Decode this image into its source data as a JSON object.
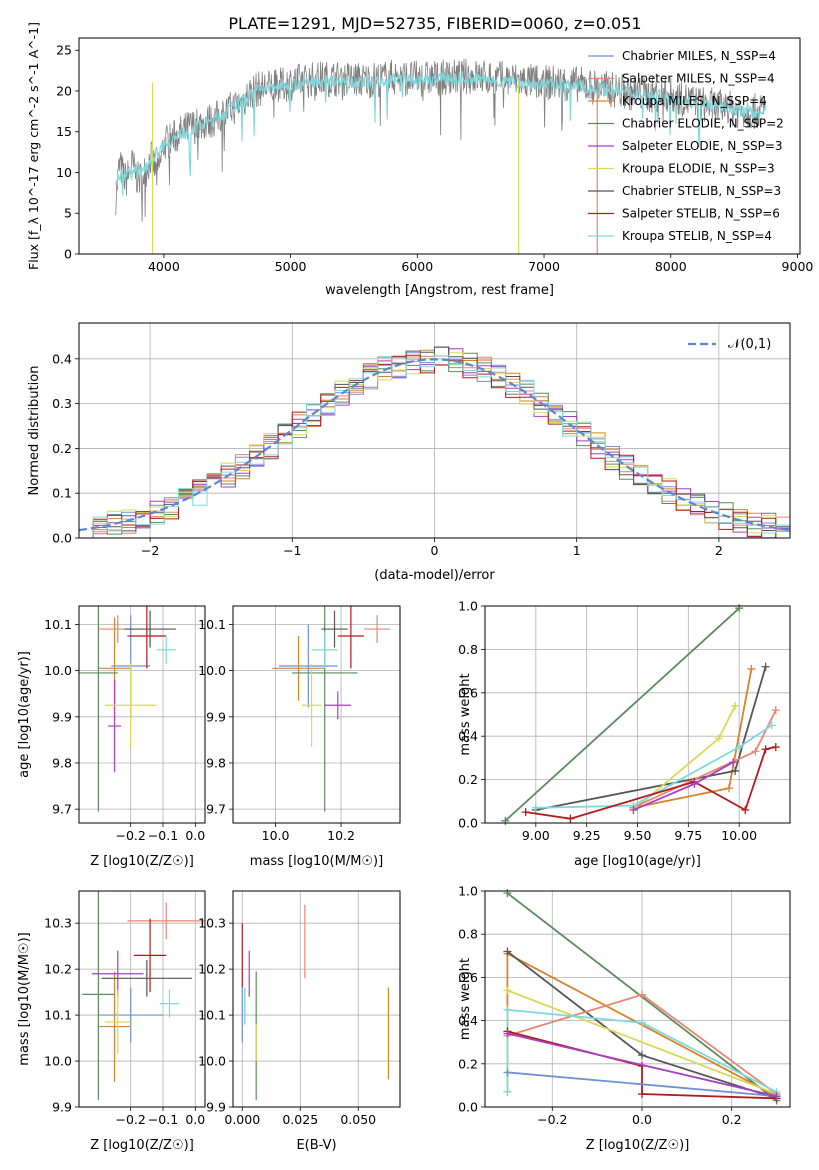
{
  "figure": {
    "title": "PLATE=1291, MJD=52735, FIBERID=0060, z=0.051"
  },
  "series_colors": {
    "Chabrier MILES": "#6f8fd6",
    "Salpeter MILES": "#e8866f",
    "Kroupa MILES": "#d9822b",
    "Chabrier ELODIE": "#5b8a5b",
    "Salpeter ELODIE": "#a63fc6",
    "Kroupa ELODIE": "#d8d955",
    "Chabrier STELIB": "#555555",
    "Salpeter STELIB": "#b31b1b",
    "Kroupa STELIB": "#7fd8dc"
  },
  "chart_data": [
    {
      "id": "spectrum",
      "type": "line",
      "title": "PLATE=1291, MJD=52735, FIBERID=0060, z=0.051",
      "xlabel": "wavelength [Angstrom, rest frame]",
      "ylabel": "Flux [f_λ 10^-17 erg cm^-2 s^-1 A^-1]",
      "xlim": [
        3330,
        9020
      ],
      "ylim": [
        0,
        26.5
      ],
      "xticks": [
        4000,
        5000,
        6000,
        7000,
        8000,
        9000
      ],
      "yticks": [
        0,
        5,
        10,
        15,
        20,
        25
      ],
      "legend_loc": "right",
      "legend": [
        {
          "label": "Chabrier MILES, N_SSP=4",
          "color": "#6f8fd6"
        },
        {
          "label": "Salpeter MILES, N_SSP=4",
          "color": "#e8866f"
        },
        {
          "label": "Kroupa MILES, N_SSP=4",
          "color": "#d9822b"
        },
        {
          "label": "Chabrier ELODIE, N_SSP=2",
          "color": "#5b8a5b"
        },
        {
          "label": "Salpeter ELODIE, N_SSP=3",
          "color": "#a63fc6"
        },
        {
          "label": "Kroupa ELODIE, N_SSP=3",
          "color": "#d8d955"
        },
        {
          "label": "Chabrier STELIB, N_SSP=3",
          "color": "#555555"
        },
        {
          "label": "Salpeter STELIB, N_SSP=6",
          "color": "#b31b1b"
        },
        {
          "label": "Kroupa STELIB, N_SSP=4",
          "color": "#7fd8dc"
        }
      ],
      "data_curve": {
        "color": "#808080",
        "x": [
          3620,
          3650,
          3700,
          3750,
          3800,
          3850,
          3900,
          3950,
          4000,
          4100,
          4200,
          4300,
          4400,
          4500,
          4600,
          4700,
          4800,
          4900,
          5000,
          5200,
          5400,
          5600,
          5800,
          6000,
          6200,
          6400,
          6600,
          6800,
          7000,
          7200,
          7400,
          7600,
          7800,
          8000,
          8200,
          8400,
          8600,
          8750
        ],
        "y": [
          7.0,
          11.0,
          9.0,
          11.0,
          9.0,
          10.0,
          12.0,
          9.5,
          13.5,
          14.5,
          15.5,
          16.0,
          16.5,
          17.5,
          18.5,
          20.0,
          20.5,
          20.5,
          21.0,
          21.5,
          21.5,
          21.3,
          21.7,
          21.5,
          21.6,
          21.8,
          21.6,
          21.3,
          21.0,
          21.0,
          20.5,
          20.0,
          19.5,
          19.5,
          18.5,
          18.0,
          17.5,
          17.5
        ]
      },
      "model_curve": {
        "color": "#7fd8dc",
        "x": [
          3620,
          3700,
          3800,
          3900,
          4000,
          4100,
          4200,
          4300,
          4400,
          4500,
          4600,
          4700,
          4800,
          4900,
          5000,
          5200,
          5400,
          5600,
          5800,
          6000,
          6200,
          6400,
          6600,
          6800,
          7000,
          7200,
          7400,
          7600,
          7800,
          8000,
          8200,
          8400,
          8600,
          8750
        ],
        "y": [
          9.0,
          10.0,
          10.0,
          11.5,
          13.5,
          14.3,
          15.2,
          15.8,
          16.5,
          17.5,
          18.5,
          20.0,
          20.3,
          20.5,
          20.8,
          21.2,
          21.3,
          21.0,
          21.5,
          21.2,
          21.5,
          21.5,
          21.3,
          21.0,
          20.8,
          20.7,
          20.3,
          20.0,
          19.5,
          19.3,
          18.5,
          18.0,
          17.5,
          17.3
        ]
      },
      "drops": [
        {
          "x": 6800,
          "color": "#d8d955"
        },
        {
          "x": 7420,
          "color": "#e8866f"
        },
        {
          "x": 3910,
          "color": "#d8d955"
        }
      ]
    },
    {
      "id": "residuals",
      "type": "line",
      "xlabel": "(data-model)/error",
      "ylabel": "Normed distribution",
      "xlim": [
        -2.5,
        2.5
      ],
      "ylim": [
        0,
        0.48
      ],
      "xticks": [
        -2,
        -1,
        0,
        1,
        2
      ],
      "yticks": [
        0.0,
        0.1,
        0.2,
        0.3,
        0.4
      ],
      "legend_loc": "top-right",
      "legend_label": "𝒩(0,1)",
      "gaussian": {
        "mean": 0,
        "sigma": 1,
        "color": "#5b86d6"
      }
    },
    {
      "id": "age_vs_Z",
      "type": "scatter",
      "xlabel": "Z [log10(Z/Z☉)]",
      "ylabel": "age  [log10(age/yr)]",
      "xlim": [
        -0.36,
        0.03
      ],
      "ylim": [
        9.67,
        10.14
      ],
      "xticks": [
        -0.2,
        -0.1,
        0.0
      ],
      "yticks": [
        9.7,
        9.8,
        9.9,
        10.0,
        10.1
      ],
      "points": [
        {
          "series": "Chabrier MILES",
          "x": -0.2,
          "y": 10.01,
          "xerr": 0.06,
          "yerr": 0.11
        },
        {
          "series": "Salpeter MILES",
          "x": -0.24,
          "y": 10.09,
          "xerr": 0.06,
          "yerr": 0.03
        },
        {
          "series": "Kroupa MILES",
          "x": -0.25,
          "y": 10.005,
          "xerr": 0.05,
          "yerr": 0.11
        },
        {
          "series": "Chabrier ELODIE",
          "x": -0.3,
          "y": 9.995,
          "xerr": 0.06,
          "yerr": 0.3
        },
        {
          "series": "Salpeter ELODIE",
          "x": -0.25,
          "y": 9.88,
          "xerr": 0.02,
          "yerr": 0.1
        },
        {
          "series": "Kroupa ELODIE",
          "x": -0.2,
          "y": 9.925,
          "xerr": 0.08,
          "yerr": 0.09
        },
        {
          "series": "Chabrier STELIB",
          "x": -0.14,
          "y": 10.09,
          "xerr": 0.08,
          "yerr": 0.04
        },
        {
          "series": "Salpeter STELIB",
          "x": -0.15,
          "y": 10.075,
          "xerr": 0.06,
          "yerr": 0.07
        },
        {
          "series": "Kroupa STELIB",
          "x": -0.09,
          "y": 10.045,
          "xerr": 0.03,
          "yerr": 0.03
        }
      ]
    },
    {
      "id": "age_vs_mass",
      "type": "scatter",
      "xlabel": "mass [log10(M/M☉)]",
      "ylabel": "",
      "xlim": [
        9.87,
        10.38
      ],
      "ylim": [
        9.67,
        10.14
      ],
      "xticks": [
        10.0,
        10.2
      ],
      "yticks": [
        9.7,
        9.8,
        9.9,
        10.0,
        10.1
      ],
      "points": [
        {
          "series": "Chabrier MILES",
          "x": 10.1,
          "y": 10.01,
          "xerr": 0.09,
          "yerr": 0.09
        },
        {
          "series": "Salpeter MILES",
          "x": 10.31,
          "y": 10.09,
          "xerr": 0.04,
          "yerr": 0.03
        },
        {
          "series": "Kroupa MILES",
          "x": 10.07,
          "y": 10.005,
          "xerr": 0.08,
          "yerr": 0.07
        },
        {
          "series": "Chabrier ELODIE",
          "x": 10.15,
          "y": 9.995,
          "xerr": 0.1,
          "yerr": 0.3
        },
        {
          "series": "Salpeter ELODIE",
          "x": 10.19,
          "y": 9.925,
          "xerr": 0.04,
          "yerr": 0.03
        },
        {
          "series": "Kroupa ELODIE",
          "x": 10.11,
          "y": 9.925,
          "xerr": 0.03,
          "yerr": 0.09
        },
        {
          "series": "Chabrier STELIB",
          "x": 10.18,
          "y": 10.09,
          "xerr": 0.04,
          "yerr": 0.04
        },
        {
          "series": "Salpeter STELIB",
          "x": 10.23,
          "y": 10.075,
          "xerr": 0.04,
          "yerr": 0.07
        },
        {
          "series": "Kroupa STELIB",
          "x": 10.15,
          "y": 10.045,
          "xerr": 0.04,
          "yerr": 0.04
        }
      ]
    },
    {
      "id": "mass_weight_vs_age",
      "type": "line",
      "xlabel": "age  [log10(age/yr)]",
      "ylabel": "mass weight",
      "xlim": [
        8.75,
        10.25
      ],
      "ylim": [
        0,
        1.0
      ],
      "xticks": [
        9.0,
        9.25,
        9.5,
        9.75,
        10.0
      ],
      "yticks": [
        0.0,
        0.2,
        0.4,
        0.6,
        0.8,
        1.0
      ],
      "series": [
        {
          "name": "Chabrier ELODIE",
          "x": [
            8.85,
            10.0
          ],
          "y": [
            0.01,
            0.99
          ]
        },
        {
          "name": "Kroupa MILES",
          "x": [
            9.48,
            9.95,
            10.06
          ],
          "y": [
            0.07,
            0.16,
            0.71
          ]
        },
        {
          "name": "Chabrier STELIB",
          "x": [
            9.0,
            9.98,
            10.13
          ],
          "y": [
            0.06,
            0.24,
            0.72
          ]
        },
        {
          "name": "Kroupa ELODIE",
          "x": [
            9.48,
            9.9,
            9.98
          ],
          "y": [
            0.06,
            0.39,
            0.54
          ]
        },
        {
          "name": "Salpeter MILES",
          "x": [
            9.5,
            10.08,
            10.18
          ],
          "y": [
            0.08,
            0.33,
            0.52
          ]
        },
        {
          "name": "Kroupa STELIB",
          "x": [
            9.0,
            9.48,
            10.0,
            10.16
          ],
          "y": [
            0.07,
            0.08,
            0.35,
            0.45
          ]
        },
        {
          "name": "Salpeter STELIB",
          "x": [
            8.95,
            9.17,
            9.78,
            10.03,
            10.13,
            10.18
          ],
          "y": [
            0.05,
            0.02,
            0.19,
            0.06,
            0.34,
            0.35
          ]
        },
        {
          "name": "Salpeter ELODIE",
          "x": [
            9.48,
            9.78,
            9.97
          ],
          "y": [
            0.06,
            0.18,
            0.28
          ]
        }
      ]
    },
    {
      "id": "mass_vs_Z",
      "type": "scatter",
      "xlabel": "Z [log10(Z/Z☉)]",
      "ylabel": "mass [log10(M/M☉)]",
      "xlim": [
        -0.36,
        0.03
      ],
      "ylim": [
        9.9,
        10.37
      ],
      "xticks": [
        -0.2,
        -0.1,
        0.0
      ],
      "yticks": [
        9.9,
        10.0,
        10.1,
        10.2,
        10.3
      ],
      "points": [
        {
          "series": "Chabrier MILES",
          "x": -0.2,
          "y": 10.1,
          "xerr": 0.1,
          "yerr": 0.06
        },
        {
          "series": "Salpeter MILES",
          "x": -0.09,
          "y": 10.305,
          "xerr": 0.12,
          "yerr": 0.04
        },
        {
          "series": "Kroupa MILES",
          "x": -0.25,
          "y": 10.075,
          "xerr": 0.05,
          "yerr": 0.12
        },
        {
          "series": "Chabrier ELODIE",
          "x": -0.3,
          "y": 10.145,
          "xerr": 0.05,
          "yerr": 0.23
        },
        {
          "series": "Salpeter ELODIE",
          "x": -0.24,
          "y": 10.19,
          "xerr": 0.08,
          "yerr": 0.05
        },
        {
          "series": "Kroupa ELODIE",
          "x": -0.24,
          "y": 10.085,
          "xerr": 0.04,
          "yerr": 0.07
        },
        {
          "series": "Chabrier STELIB",
          "x": -0.15,
          "y": 10.18,
          "xerr": 0.14,
          "yerr": 0.04
        },
        {
          "series": "Salpeter STELIB",
          "x": -0.14,
          "y": 10.23,
          "xerr": 0.05,
          "yerr": 0.08
        },
        {
          "series": "Kroupa STELIB",
          "x": -0.08,
          "y": 10.125,
          "xerr": 0.03,
          "yerr": 0.03
        }
      ]
    },
    {
      "id": "mass_vs_EBV",
      "type": "scatter",
      "xlabel": "E(B-V)",
      "ylabel": "",
      "xlim": [
        -0.004,
        0.068
      ],
      "ylim": [
        9.9,
        10.37
      ],
      "xticks": [
        0.0,
        0.025,
        0.05
      ],
      "xticklabels": [
        "0.000",
        "0.025",
        "0.050"
      ],
      "yticks": [
        9.9,
        10.0,
        10.1,
        10.2,
        10.3
      ],
      "points": [
        {
          "series": "Chabrier MILES",
          "x": 0.0,
          "y": 10.1,
          "yerr": 0.06
        },
        {
          "series": "Salpeter MILES",
          "x": 0.027,
          "y": 10.26,
          "yerr": 0.08
        },
        {
          "series": "Kroupa MILES",
          "x": 0.063,
          "y": 10.06,
          "yerr": 0.1
        },
        {
          "series": "Chabrier ELODIE",
          "x": 0.006,
          "y": 10.055,
          "yerr": 0.14
        },
        {
          "series": "Salpeter ELODIE",
          "x": 0.003,
          "y": 10.19,
          "yerr": 0.05
        },
        {
          "series": "Kroupa ELODIE",
          "x": 0.006,
          "y": 10.04,
          "yerr": 0.04
        },
        {
          "series": "Chabrier STELIB",
          "x": 0.001,
          "y": 10.12,
          "yerr": 0.04
        },
        {
          "series": "Salpeter STELIB",
          "x": 0.0,
          "y": 10.23,
          "yerr": 0.07
        },
        {
          "series": "Kroupa STELIB",
          "x": 0.001,
          "y": 10.12,
          "yerr": 0.04
        }
      ]
    },
    {
      "id": "mass_weight_vs_Z",
      "type": "line",
      "xlabel": "Z [log10(Z/Z☉)]",
      "ylabel": "mass weight",
      "xlim": [
        -0.35,
        0.33
      ],
      "ylim": [
        0,
        1.0
      ],
      "xticks": [
        -0.2,
        0.0,
        0.2
      ],
      "yticks": [
        0.0,
        0.2,
        0.4,
        0.6,
        0.8,
        1.0
      ],
      "series": [
        {
          "name": "Chabrier ELODIE",
          "x": [
            -0.3,
            0.3
          ],
          "y": [
            0.99,
            0.03
          ]
        },
        {
          "name": "Kroupa MILES",
          "x": [
            -0.3,
            -0.3,
            0.3
          ],
          "y": [
            0.07,
            0.71,
            0.05
          ]
        },
        {
          "name": "Chabrier STELIB",
          "x": [
            -0.3,
            0.0,
            0.3
          ],
          "y": [
            0.72,
            0.24,
            0.04
          ]
        },
        {
          "name": "Kroupa ELODIE",
          "x": [
            -0.3,
            0.3
          ],
          "y": [
            0.54,
            0.06
          ]
        },
        {
          "name": "Salpeter MILES",
          "x": [
            -0.3,
            0.0,
            0.3
          ],
          "y": [
            0.33,
            0.52,
            0.06
          ]
        },
        {
          "name": "Kroupa STELIB",
          "x": [
            -0.3,
            -0.3,
            0.0,
            0.3
          ],
          "y": [
            0.07,
            0.45,
            0.39,
            0.07
          ]
        },
        {
          "name": "Salpeter STELIB",
          "x": [
            -0.3,
            0.0,
            0.0,
            0.3
          ],
          "y": [
            0.35,
            0.19,
            0.06,
            0.04
          ]
        },
        {
          "name": "Chabrier MILES",
          "x": [
            -0.3,
            0.3
          ],
          "y": [
            0.16,
            0.05
          ]
        },
        {
          "name": "Salpeter ELODIE",
          "x": [
            -0.3,
            0.3
          ],
          "y": [
            0.34,
            0.05
          ]
        }
      ]
    }
  ]
}
